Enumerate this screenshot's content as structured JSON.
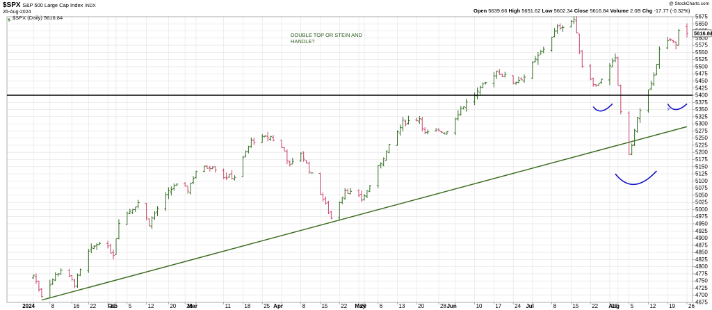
{
  "header": {
    "symbol": "$SPX",
    "name": "S&P 500 Large Cap Index",
    "exchange": "INDX",
    "date": "26-Aug-2024",
    "watermark": "@ StockCharts.com",
    "series_label": "$SPX (Daily) 5616.84",
    "open_label": "Open",
    "open": "5639.66",
    "high_label": "High",
    "high": "5651.62",
    "low_label": "Low",
    "low": "5602.34",
    "close_label": "Close",
    "close": "5616.84",
    "volume_label": "Volume",
    "volume": "2.0B",
    "chg_label": "Chg",
    "chg": "-17.77 (-0.32%)"
  },
  "annotations": {
    "note_line1": "DOUBLE TOP OR STEIN AND",
    "note_line2": "HANDLE?",
    "question_mark": "?",
    "last_price_tag": "5616.84"
  },
  "colors": {
    "up": "#2e6b1e",
    "down": "#c8406a",
    "support_line": "#000000",
    "trend_line": "#3d6e22",
    "arcs": "#1414c8",
    "grid": "#e2e2e2"
  },
  "chart_data": {
    "type": "ohlc",
    "title": "$SPX S&P 500 Large Cap Index INDX",
    "yaxis_side": "right",
    "ylim": [
      4675,
      5675
    ],
    "y_ticks": [
      4675,
      4700,
      4725,
      4750,
      4775,
      4800,
      4825,
      4850,
      4875,
      4900,
      4925,
      4950,
      4975,
      5000,
      5025,
      5050,
      5075,
      5100,
      5125,
      5150,
      5175,
      5200,
      5225,
      5250,
      5275,
      5300,
      5325,
      5350,
      5375,
      5400,
      5425,
      5450,
      5475,
      5500,
      5525,
      5550,
      5575,
      5600,
      5625,
      5650,
      5675
    ],
    "x_ticks": [
      {
        "label": "2024",
        "bold": true,
        "date": "2024-01-02"
      },
      {
        "label": "8",
        "date": "2024-01-08"
      },
      {
        "label": "16",
        "date": "2024-01-16"
      },
      {
        "label": "22",
        "date": "2024-01-22"
      },
      {
        "label": "29",
        "date": "2024-01-29"
      },
      {
        "label": "Feb",
        "bold": true,
        "date": "2024-02-01"
      },
      {
        "label": "5",
        "date": "2024-02-05"
      },
      {
        "label": "12",
        "date": "2024-02-12"
      },
      {
        "label": "20",
        "date": "2024-02-20"
      },
      {
        "label": "26",
        "date": "2024-02-26"
      },
      {
        "label": "Mar",
        "bold": true,
        "date": "2024-03-01"
      },
      {
        "label": "11",
        "date": "2024-03-11"
      },
      {
        "label": "18",
        "date": "2024-03-18"
      },
      {
        "label": "25",
        "date": "2024-03-25"
      },
      {
        "label": "Apr",
        "bold": true,
        "date": "2024-04-01"
      },
      {
        "label": "8",
        "date": "2024-04-08"
      },
      {
        "label": "15",
        "date": "2024-04-15"
      },
      {
        "label": "22",
        "date": "2024-04-22"
      },
      {
        "label": "29",
        "date": "2024-04-29"
      },
      {
        "label": "May",
        "bold": true,
        "date": "2024-05-01"
      },
      {
        "label": "6",
        "date": "2024-05-06"
      },
      {
        "label": "13",
        "date": "2024-05-13"
      },
      {
        "label": "20",
        "date": "2024-05-20"
      },
      {
        "label": "28",
        "date": "2024-05-28"
      },
      {
        "label": "Jun",
        "bold": true,
        "date": "2024-06-03"
      },
      {
        "label": "10",
        "date": "2024-06-10"
      },
      {
        "label": "17",
        "date": "2024-06-17"
      },
      {
        "label": "24",
        "date": "2024-06-24"
      },
      {
        "label": "Jul",
        "bold": true,
        "date": "2024-07-01"
      },
      {
        "label": "8",
        "date": "2024-07-08"
      },
      {
        "label": "15",
        "date": "2024-07-15"
      },
      {
        "label": "22",
        "date": "2024-07-22"
      },
      {
        "label": "29",
        "date": "2024-07-29"
      },
      {
        "label": "Aug",
        "bold": true,
        "date": "2024-08-01"
      },
      {
        "label": "5",
        "date": "2024-08-05"
      },
      {
        "label": "12",
        "date": "2024-08-12"
      },
      {
        "label": "19",
        "date": "2024-08-19"
      },
      {
        "label": "26",
        "date": "2024-08-26"
      }
    ],
    "support_level": 5400,
    "trendline": [
      [
        "2024-01-05",
        4683
      ],
      [
        "2024-08-26",
        5290
      ]
    ],
    "arcs": [
      {
        "from": [
          "2024-07-23",
          5360
        ],
        "via": [
          "2024-07-26",
          5345
        ],
        "to": [
          "2024-07-30",
          5370
        ]
      },
      {
        "from": [
          "2024-07-31",
          5125
        ],
        "via": [
          "2024-08-07",
          5088
        ],
        "to": [
          "2024-08-15",
          5135
        ]
      },
      {
        "from": [
          "2024-08-19",
          5370
        ],
        "via": [
          "2024-08-22",
          5350
        ],
        "to": [
          "2024-08-26",
          5370
        ]
      }
    ],
    "anchors": [
      [
        "2024-01-02",
        4770
      ],
      [
        "2024-01-05",
        4700
      ],
      [
        "2024-01-10",
        4770
      ],
      [
        "2024-01-12",
        4790
      ],
      [
        "2024-01-17",
        4740
      ],
      [
        "2024-01-22",
        4850
      ],
      [
        "2024-01-26",
        4890
      ],
      [
        "2024-01-31",
        4845
      ],
      [
        "2024-02-02",
        4960
      ],
      [
        "2024-02-09",
        5025
      ],
      [
        "2024-02-13",
        4950
      ],
      [
        "2024-02-16",
        5005
      ],
      [
        "2024-02-22",
        5085
      ],
      [
        "2024-02-27",
        5070
      ],
      [
        "2024-03-01",
        5135
      ],
      [
        "2024-03-07",
        5155
      ],
      [
        "2024-03-11",
        5115
      ],
      [
        "2024-03-15",
        5115
      ],
      [
        "2024-03-21",
        5240
      ],
      [
        "2024-03-28",
        5255
      ],
      [
        "2024-04-02",
        5205
      ],
      [
        "2024-04-04",
        5150
      ],
      [
        "2024-04-08",
        5200
      ],
      [
        "2024-04-12",
        5120
      ],
      [
        "2024-04-15",
        5060
      ],
      [
        "2024-04-19",
        4970
      ],
      [
        "2024-04-24",
        5070
      ],
      [
        "2024-04-30",
        5035
      ],
      [
        "2024-05-02",
        5065
      ],
      [
        "2024-05-08",
        5185
      ],
      [
        "2024-05-15",
        5305
      ],
      [
        "2024-05-21",
        5320
      ],
      [
        "2024-05-23",
        5265
      ],
      [
        "2024-05-31",
        5275
      ],
      [
        "2024-06-05",
        5355
      ],
      [
        "2024-06-12",
        5420
      ],
      [
        "2024-06-18",
        5485
      ],
      [
        "2024-06-24",
        5445
      ],
      [
        "2024-06-28",
        5465
      ],
      [
        "2024-07-03",
        5535
      ],
      [
        "2024-07-10",
        5635
      ],
      [
        "2024-07-16",
        5665
      ],
      [
        "2024-07-19",
        5505
      ],
      [
        "2024-07-24",
        5430
      ],
      [
        "2024-07-26",
        5460
      ],
      [
        "2024-07-31",
        5525
      ],
      [
        "2024-08-02",
        5345
      ],
      [
        "2024-08-05",
        5185
      ],
      [
        "2024-08-08",
        5320
      ],
      [
        "2024-08-13",
        5435
      ],
      [
        "2024-08-16",
        5555
      ],
      [
        "2024-08-20",
        5595
      ],
      [
        "2024-08-22",
        5575
      ],
      [
        "2024-08-23",
        5635
      ],
      [
        "2024-08-26",
        5616.84
      ]
    ],
    "last": {
      "open": 5639.66,
      "high": 5651.62,
      "low": 5602.34,
      "close": 5616.84
    }
  }
}
